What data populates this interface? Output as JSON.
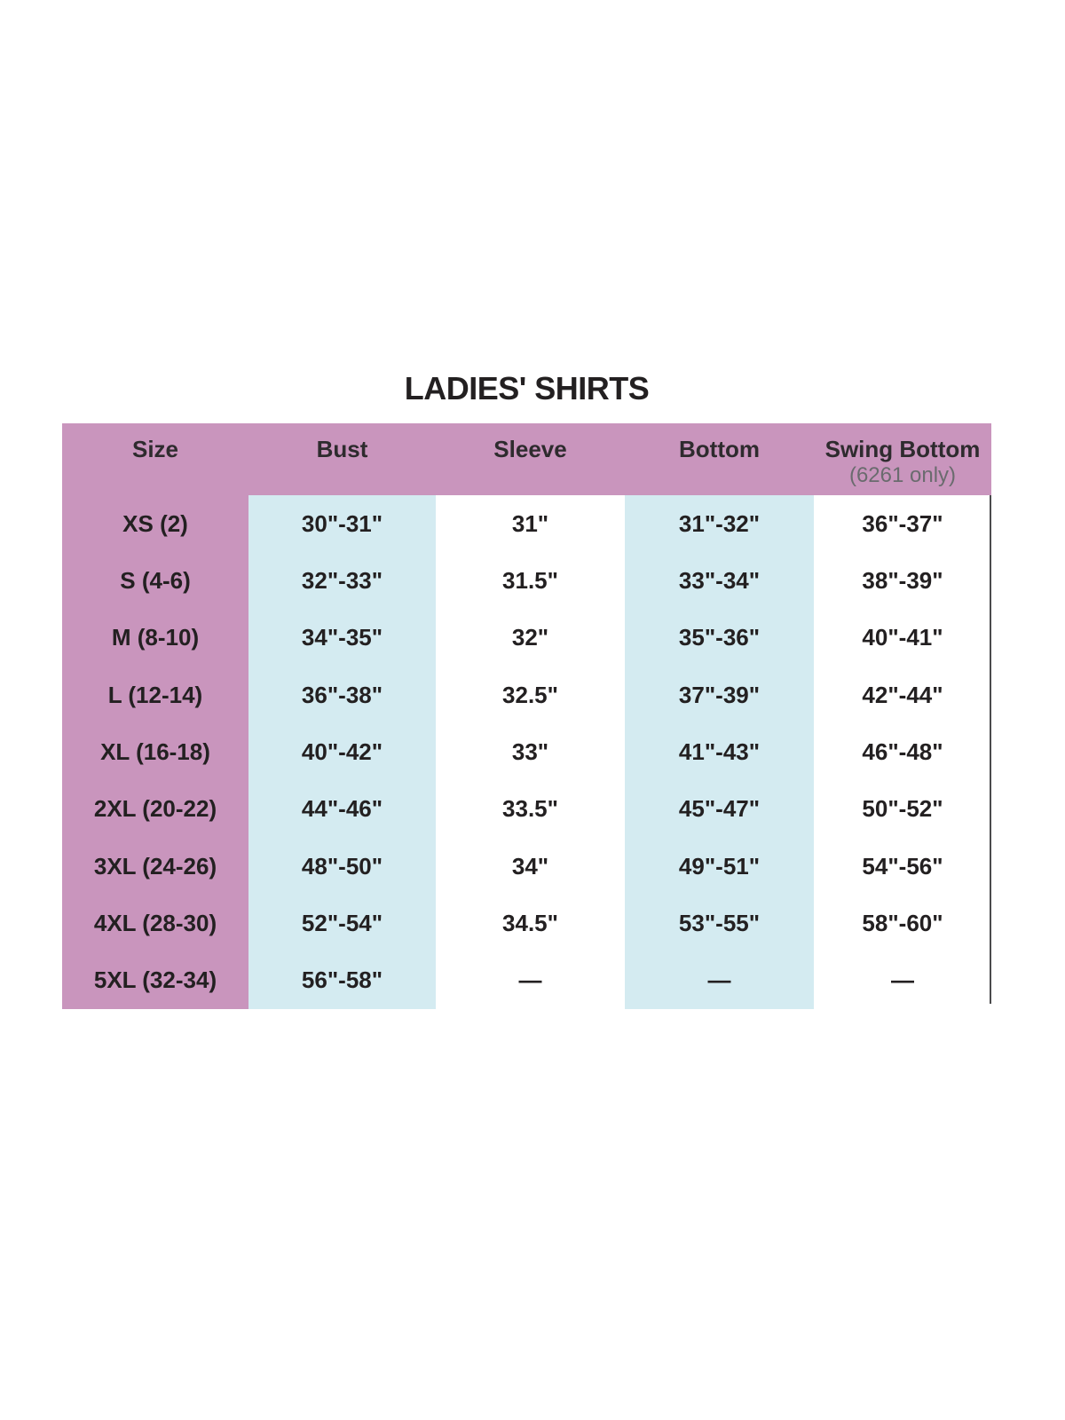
{
  "title": "LADIES' SHIRTS",
  "table": {
    "columns": [
      {
        "label": "Size",
        "sublabel": ""
      },
      {
        "label": "Bust",
        "sublabel": ""
      },
      {
        "label": "Sleeve",
        "sublabel": ""
      },
      {
        "label": "Bottom",
        "sublabel": ""
      },
      {
        "label": "Swing Bottom",
        "sublabel": "(6261 only)"
      }
    ],
    "rows": [
      [
        "XS (2)",
        "30\"-31\"",
        "31\"",
        "31\"-32\"",
        "36\"-37\""
      ],
      [
        "S (4-6)",
        "32\"-33\"",
        "31.5\"",
        "33\"-34\"",
        "38\"-39\""
      ],
      [
        "M (8-10)",
        "34\"-35\"",
        "32\"",
        "35\"-36\"",
        "40\"-41\""
      ],
      [
        "L (12-14)",
        "36\"-38\"",
        "32.5\"",
        "37\"-39\"",
        "42\"-44\""
      ],
      [
        "XL (16-18)",
        "40\"-42\"",
        "33\"",
        "41\"-43\"",
        "46\"-48\""
      ],
      [
        "2XL (20-22)",
        "44\"-46\"",
        "33.5\"",
        "45\"-47\"",
        "50\"-52\""
      ],
      [
        "3XL (24-26)",
        "48\"-50\"",
        "34\"",
        "49\"-51\"",
        "54\"-56\""
      ],
      [
        "4XL (28-30)",
        "52\"-54\"",
        "34.5\"",
        "53\"-55\"",
        "58\"-60\""
      ],
      [
        "5XL (32-34)",
        "56\"-58\"",
        "—",
        "—",
        "—"
      ]
    ]
  },
  "colors": {
    "header_bg": "#c995bd",
    "size_column_bg": "#c995bd",
    "highlight_column_bg": "#d4ebf1",
    "text": "#232021",
    "subheader_text": "#6a6b6e",
    "divider": "#4b4b4d"
  }
}
